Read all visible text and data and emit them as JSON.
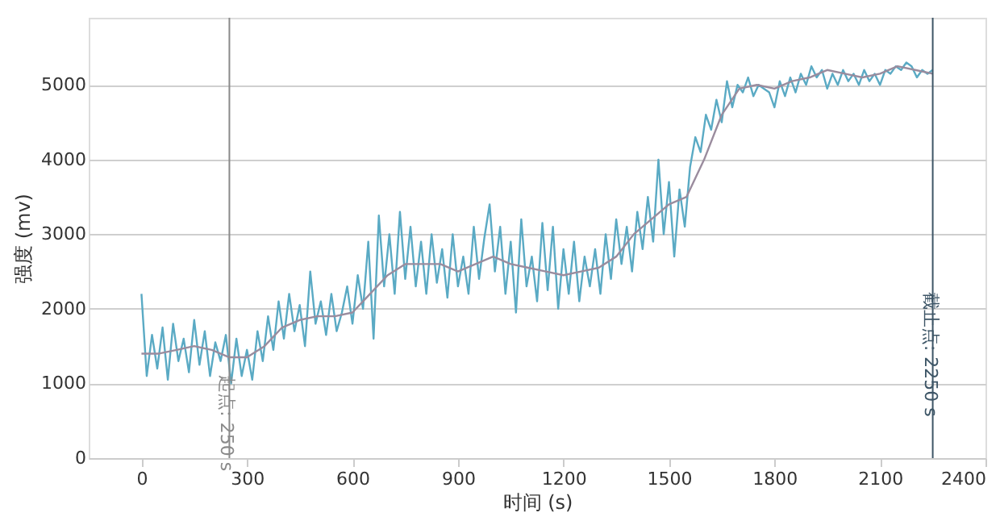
{
  "chart_data": {
    "type": "line",
    "xlabel": "时间 (s)",
    "ylabel": "强度 (mv)",
    "xlim": [
      -150,
      2400
    ],
    "xticks": [
      0,
      300,
      600,
      900,
      1200,
      1500,
      1800,
      2100,
      2400
    ],
    "ylim": [
      0,
      5900
    ],
    "yticks": [
      0,
      1000,
      2000,
      3000,
      4000,
      5000
    ],
    "grid": "y",
    "legend": false,
    "marker": "none",
    "line_style": "solid",
    "series": [
      {
        "color": "#5aaac4",
        "x": [
          0,
          15,
          30,
          45,
          60,
          75,
          90,
          105,
          120,
          135,
          150,
          165,
          180,
          195,
          210,
          225,
          240,
          255,
          270,
          285,
          300,
          315,
          330,
          345,
          360,
          375,
          390,
          405,
          420,
          435,
          450,
          465,
          480,
          495,
          510,
          525,
          540,
          555,
          570,
          585,
          600,
          615,
          630,
          645,
          660,
          675,
          690,
          705,
          720,
          735,
          750,
          765,
          780,
          795,
          810,
          825,
          840,
          855,
          870,
          885,
          900,
          915,
          930,
          945,
          960,
          975,
          990,
          1005,
          1020,
          1035,
          1050,
          1065,
          1080,
          1095,
          1110,
          1125,
          1140,
          1155,
          1170,
          1185,
          1200,
          1215,
          1230,
          1245,
          1260,
          1275,
          1290,
          1305,
          1320,
          1335,
          1350,
          1365,
          1380,
          1395,
          1410,
          1425,
          1440,
          1455,
          1470,
          1485,
          1500,
          1515,
          1530,
          1545,
          1560,
          1575,
          1590,
          1605,
          1620,
          1635,
          1650,
          1665,
          1680,
          1695,
          1710,
          1725,
          1740,
          1755,
          1770,
          1785,
          1800,
          1815,
          1830,
          1845,
          1860,
          1875,
          1890,
          1905,
          1920,
          1935,
          1950,
          1965,
          1980,
          1995,
          2010,
          2025,
          2040,
          2055,
          2070,
          2085,
          2100,
          2115,
          2130,
          2145,
          2160,
          2175,
          2190,
          2205,
          2220,
          2235,
          2250
        ],
        "values": [
          2200,
          1100,
          1650,
          1200,
          1750,
          1050,
          1800,
          1300,
          1600,
          1150,
          1850,
          1250,
          1700,
          1100,
          1550,
          1300,
          1650,
          1000,
          1600,
          1100,
          1450,
          1050,
          1700,
          1300,
          1900,
          1450,
          2100,
          1600,
          2200,
          1700,
          2050,
          1500,
          2500,
          1800,
          2100,
          1650,
          2200,
          1700,
          1950,
          2300,
          1800,
          2450,
          2000,
          2900,
          1600,
          3250,
          2300,
          3000,
          2200,
          3300,
          2400,
          3100,
          2300,
          2900,
          2200,
          3000,
          2350,
          2800,
          2150,
          3000,
          2300,
          2700,
          2200,
          3100,
          2400,
          2950,
          3400,
          2500,
          3100,
          2200,
          2900,
          1950,
          3200,
          2300,
          2700,
          2100,
          3150,
          2250,
          3100,
          2000,
          2800,
          2200,
          2900,
          2100,
          2700,
          2300,
          2800,
          2200,
          3000,
          2400,
          3200,
          2600,
          3100,
          2500,
          3300,
          2800,
          3500,
          2900,
          4000,
          3000,
          3700,
          2700,
          3600,
          3100,
          3900,
          4300,
          4100,
          4600,
          4400,
          4800,
          4500,
          5050,
          4700,
          5000,
          4900,
          5100,
          4850,
          5000,
          4950,
          4900,
          4700,
          5050,
          4850,
          5100,
          4900,
          5150,
          5000,
          5250,
          5100,
          5200,
          4950,
          5150,
          5000,
          5200,
          5050,
          5150,
          5000,
          5200,
          5050,
          5150,
          5000,
          5200,
          5150,
          5250,
          5200,
          5300,
          5250,
          5100,
          5200,
          5150,
          5200
        ]
      },
      {
        "color": "#9a8c9e",
        "x": [
          0,
          50,
          100,
          150,
          200,
          250,
          300,
          350,
          400,
          450,
          500,
          550,
          600,
          650,
          700,
          750,
          800,
          850,
          900,
          950,
          1000,
          1050,
          1100,
          1150,
          1200,
          1250,
          1300,
          1350,
          1400,
          1450,
          1500,
          1550,
          1600,
          1650,
          1700,
          1750,
          1800,
          1850,
          1900,
          1950,
          2000,
          2050,
          2100,
          2150,
          2200,
          2250
        ],
        "values": [
          1400,
          1400,
          1450,
          1500,
          1450,
          1350,
          1350,
          1500,
          1750,
          1850,
          1900,
          1900,
          1950,
          2200,
          2450,
          2600,
          2600,
          2600,
          2500,
          2600,
          2700,
          2600,
          2550,
          2500,
          2450,
          2500,
          2550,
          2700,
          3000,
          3200,
          3400,
          3500,
          4000,
          4600,
          4950,
          5000,
          4950,
          5050,
          5100,
          5200,
          5150,
          5100,
          5150,
          5250,
          5200,
          5150
        ]
      }
    ],
    "ref_lines": [
      {
        "axis": "x",
        "value": 250,
        "label": "起点: 250 s",
        "color": "#8a8a8a"
      },
      {
        "axis": "x",
        "value": 2250,
        "label": "截止点: 2250 s",
        "color": "#3d5566"
      }
    ]
  }
}
